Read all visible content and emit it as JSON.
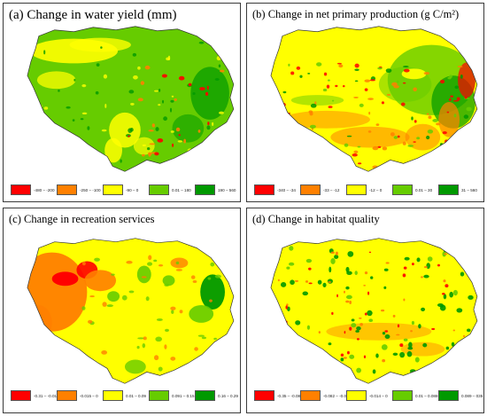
{
  "colors": {
    "red": "#ff0000",
    "orange": "#ff8000",
    "yellow": "#ffff00",
    "lightgreen": "#66cc00",
    "darkgreen": "#009900"
  },
  "panels": [
    {
      "id": "a",
      "title": "(a) Change in water yield (mm)",
      "dominant": "lightgreen",
      "legend": [
        {
          "label": "-480 – -200",
          "color": "red"
        },
        {
          "label": "-250 – -100",
          "color": "orange"
        },
        {
          "label": "-90 – 0",
          "color": "yellow"
        },
        {
          "label": "0.01 – 180",
          "color": "lightgreen"
        },
        {
          "label": "190 – 560",
          "color": "darkgreen"
        }
      ]
    },
    {
      "id": "b",
      "title": "(b) Change in net primary production (g C/m²)",
      "dominant": "yellow",
      "legend": [
        {
          "label": "-340 – -34",
          "color": "red"
        },
        {
          "label": "-33 – -12",
          "color": "orange"
        },
        {
          "label": "-12 – 0",
          "color": "yellow"
        },
        {
          "label": "0.01 – 30",
          "color": "lightgreen"
        },
        {
          "label": "31 – 560",
          "color": "darkgreen"
        }
      ]
    },
    {
      "id": "c",
      "title": "(c) Change in recreation services",
      "dominant": "yellow",
      "legend": [
        {
          "label": "-0.31 – -0.016",
          "color": "red"
        },
        {
          "label": "-0.015 – 0",
          "color": "orange"
        },
        {
          "label": "0.01 – 0.09",
          "color": "yellow"
        },
        {
          "label": "0.091 – 0.15",
          "color": "lightgreen"
        },
        {
          "label": "0.16 – 0.29",
          "color": "darkgreen"
        }
      ]
    },
    {
      "id": "d",
      "title": "(d) Change in habitat quality",
      "dominant": "yellow",
      "legend": [
        {
          "label": "-0.35 – -0.083",
          "color": "red"
        },
        {
          "label": "-0.082 – -0.015",
          "color": "orange"
        },
        {
          "label": "-0.014 – 0",
          "color": "yellow"
        },
        {
          "label": "0.01 – 0.088",
          "color": "lightgreen"
        },
        {
          "label": "0.089 – 035",
          "color": "darkgreen"
        }
      ]
    }
  ]
}
